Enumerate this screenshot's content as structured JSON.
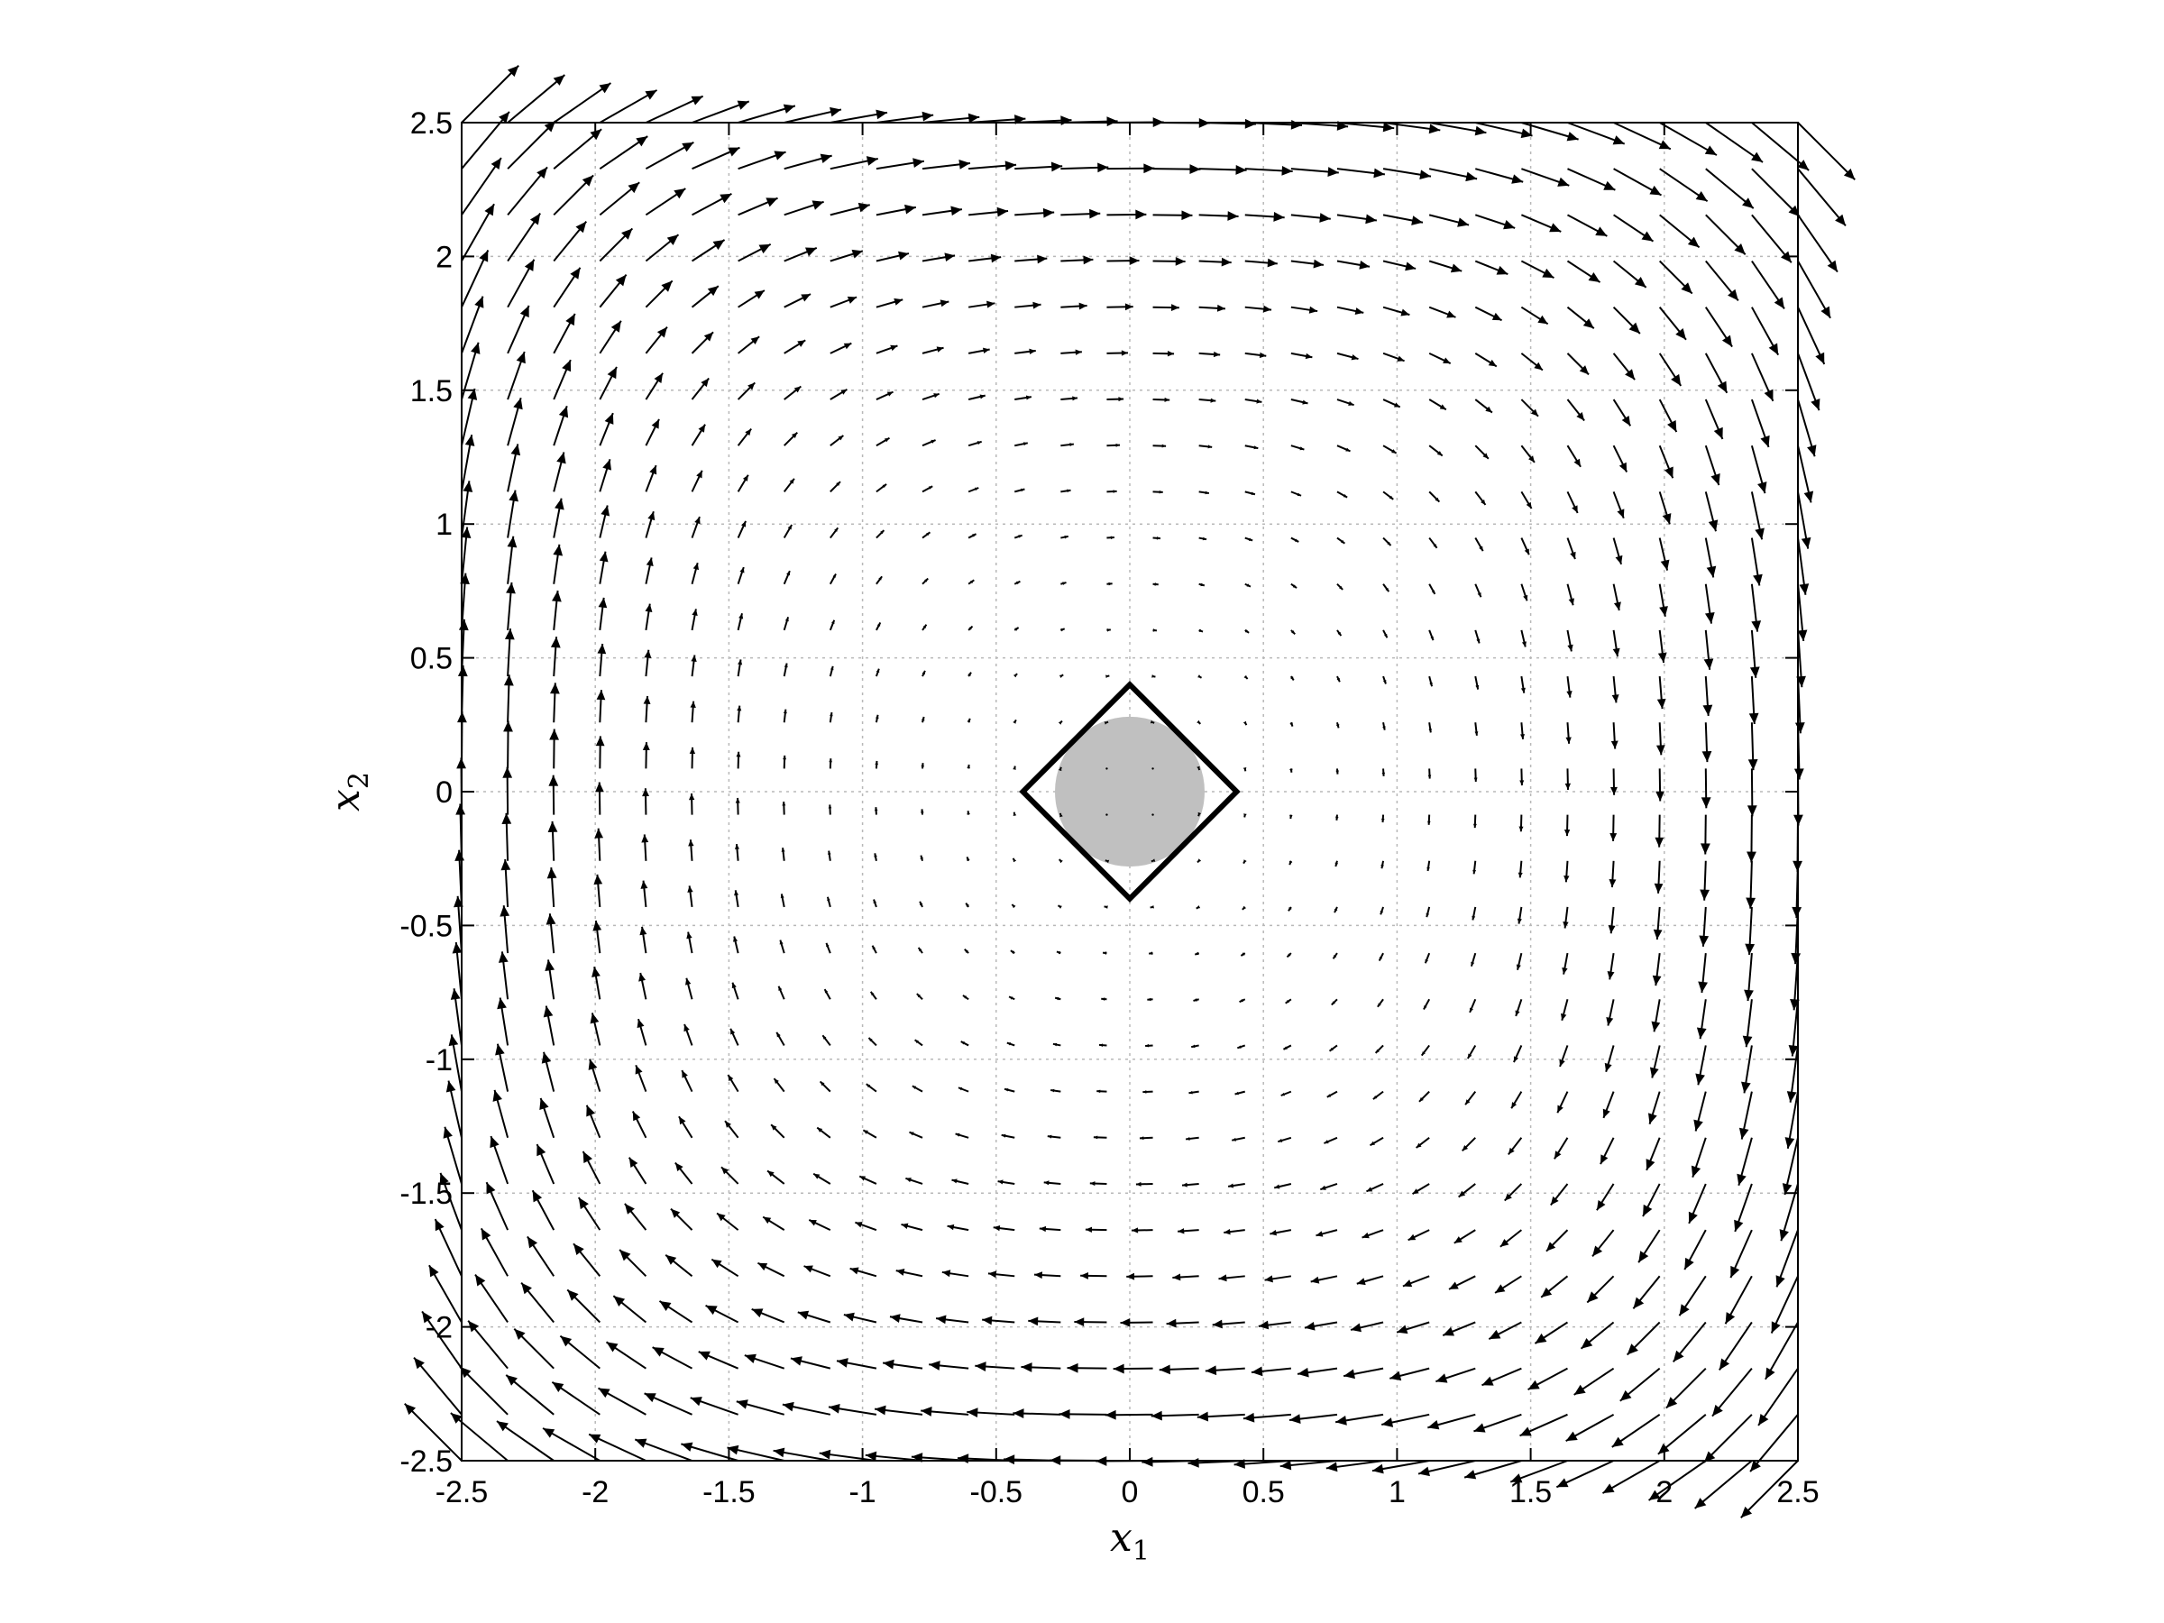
{
  "chart_data": {
    "type": "quiver",
    "title": "",
    "xlabel": "x",
    "xlabel_sub": "1",
    "ylabel": "x",
    "ylabel_sub": "2",
    "xlim": [
      -2.5,
      2.5
    ],
    "ylim": [
      -2.5,
      2.5
    ],
    "xticks": [
      -2.5,
      -2,
      -1.5,
      -1,
      -0.5,
      0,
      0.5,
      1,
      1.5,
      2,
      2.5
    ],
    "yticks": [
      -2.5,
      -2,
      -1.5,
      -1,
      -0.5,
      0,
      0.5,
      1,
      1.5,
      2,
      2.5
    ],
    "xtick_labels": [
      "-2.5",
      "-2",
      "-1.5",
      "-1",
      "-0.5",
      "0",
      "0.5",
      "1",
      "1.5",
      "2",
      "2.5"
    ],
    "ytick_labels": [
      "-2.5",
      "-2",
      "-1.5",
      "-1",
      "-0.5",
      "0",
      "0.5",
      "1",
      "1.5",
      "2",
      "2.5"
    ],
    "grid": true,
    "vector_field": {
      "x_start": -2.5,
      "x_end": 2.5,
      "x_count": 30,
      "y_start": -2.5,
      "y_end": 2.5,
      "y_count": 30,
      "dx": "x2 * (1 + x2^2 / 2)",
      "dy": "-x1 * (1 + x1^2 / 2)"
    },
    "region_diamond": {
      "vertices": [
        [
          0.4,
          0
        ],
        [
          0,
          0.4
        ],
        [
          -0.4,
          0
        ],
        [
          0,
          -0.4
        ]
      ],
      "color": "#000000"
    },
    "region_disk": {
      "center": [
        0,
        0
      ],
      "radius": 0.28,
      "color": "#c0c0c0"
    }
  }
}
